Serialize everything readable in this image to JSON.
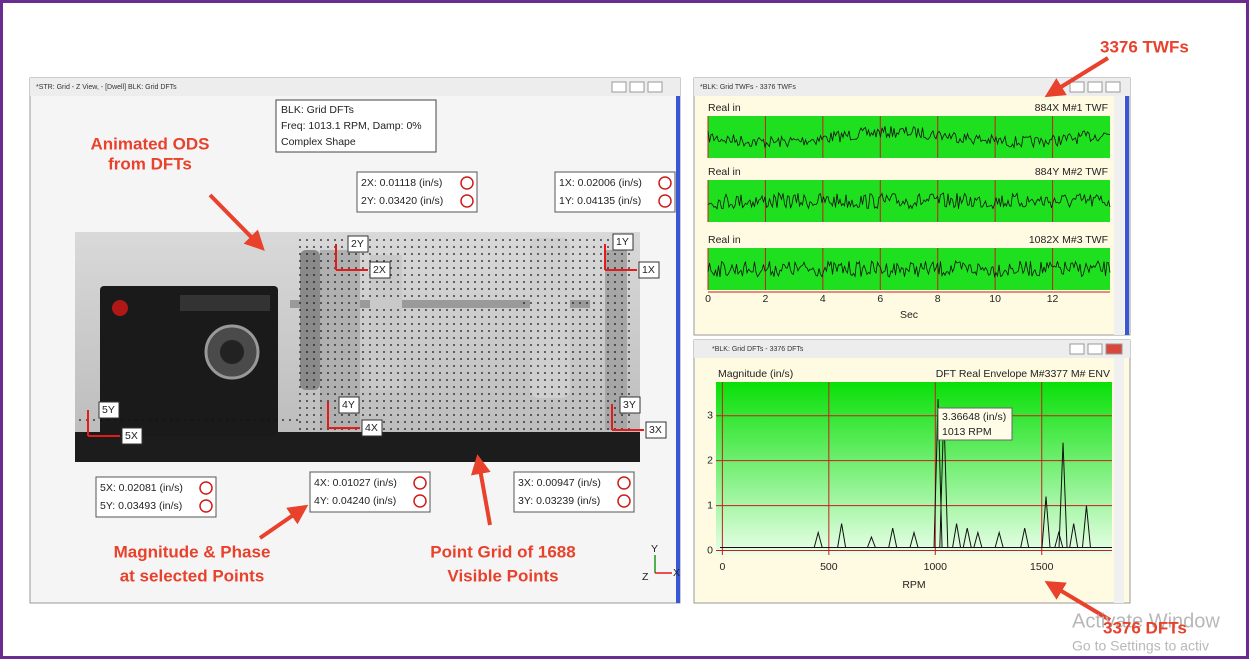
{
  "annotations": {
    "twfs": "3376 TWFs",
    "ods": [
      "Animated ODS",
      "from DFTs"
    ],
    "magnitude": [
      "Magnitude & Phase",
      "at selected Points"
    ],
    "grid": [
      "Point Grid of 1688",
      "Visible Points"
    ],
    "dfts": "3376 DFTs"
  },
  "watermark": [
    "Activate Window",
    "Go to Settings to activ"
  ],
  "ods_window": {
    "title": "*STR: Grid - Z View, - [Dwell] BLK: Grid DFTs",
    "info": [
      "BLK: Grid DFTs",
      "Freq: 1013.1 RPM, Damp: 0%",
      "Complex Shape"
    ],
    "point_labels": [
      "2Y",
      "2X",
      "1Y",
      "1X",
      "4Y",
      "4X",
      "5Y",
      "5X",
      "3Y",
      "3X"
    ],
    "readouts": [
      [
        "2X: 0.01118 (in/s)",
        "2Y: 0.03420 (in/s)"
      ],
      [
        "1X: 0.02006 (in/s)",
        "1Y: 0.04135 (in/s)"
      ],
      [
        "5X: 0.02081 (in/s)",
        "5Y: 0.03493 (in/s)"
      ],
      [
        "4X: 0.01027 (in/s)",
        "4Y: 0.04240 (in/s)"
      ],
      [
        "3X: 0.00947 (in/s)",
        "3Y: 0.03239 (in/s)"
      ]
    ],
    "triad": [
      "Y",
      "Z",
      "X"
    ]
  },
  "twf_window": {
    "title": "*BLK: Grid TWFs - 3376 TWFs",
    "traces": [
      {
        "ylabel": "Real in",
        "name": "884X M#1 TWF"
      },
      {
        "ylabel": "Real in",
        "name": "884Y M#2 TWF"
      },
      {
        "ylabel": "Real in",
        "name": "1082X M#3 TWF"
      }
    ],
    "xlim": [
      0,
      14
    ],
    "xticks": [
      0,
      2,
      4,
      6,
      8,
      10,
      12
    ],
    "xlabel": "Sec"
  },
  "dft_window": {
    "title": "*BLK: Grid DFTs - 3376 DFTs",
    "ylabel": "Magnitude (in/s)",
    "name": "DFT Real Envelope M#3377 M# ENV",
    "xlim": [
      -30,
      1830
    ],
    "ylim": [
      -0.1,
      3.75
    ],
    "xticks": [
      0,
      500,
      1000,
      1500
    ],
    "yticks": [
      0,
      1,
      2,
      3
    ],
    "xlabel": "RPM",
    "cursor": [
      "3.36648 (in/s)",
      "1013 RPM"
    ],
    "peaks": {
      "x": [
        450,
        560,
        700,
        800,
        900,
        1013,
        1040,
        1100,
        1150,
        1200,
        1300,
        1420,
        1520,
        1580,
        1600,
        1650,
        1710
      ],
      "values": [
        0.4,
        0.6,
        0.3,
        0.5,
        0.4,
        3.37,
        3.1,
        0.6,
        0.5,
        0.4,
        0.4,
        0.5,
        1.2,
        0.4,
        2.4,
        0.6,
        1.0
      ]
    }
  }
}
